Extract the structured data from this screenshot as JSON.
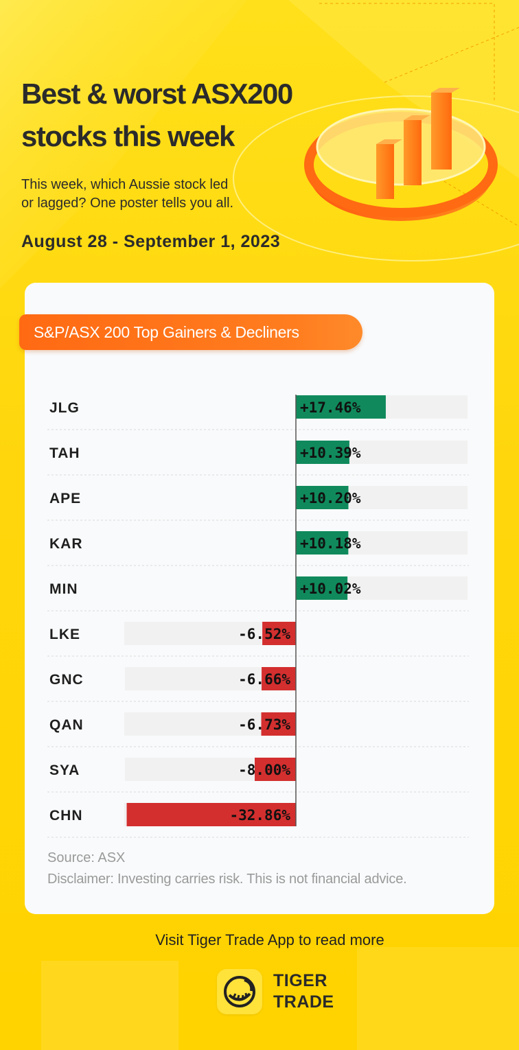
{
  "header": {
    "title_line1": "Best & worst ASX200",
    "title_line2": "stocks this week",
    "subtitle_line1": "This week, which Aussie stock led",
    "subtitle_line2": "or lagged? One poster tells you all.",
    "date_range": "August 28 - September 1, 2023"
  },
  "card": {
    "section_label": "S&P/ASX 200 Top Gainers & Decliners",
    "source": "Source: ASX",
    "disclaimer": "Disclaimer: Investing carries risk. This is not financial advice."
  },
  "footer": {
    "cta": "Visit Tiger Trade App to read more",
    "brand_line1": "TIGER",
    "brand_line2": "TRADE"
  },
  "icons": [
    "bar-chart-3d-icon",
    "tiger-trade-logo-icon"
  ],
  "colors": {
    "background": "#ffd60c",
    "accent_orange": "#ff6a13",
    "gain": "#108a5c",
    "loss": "#d32f2f",
    "track": "#f1f1f1",
    "text_dark": "#1f1f1f",
    "text_muted": "#9a9a9a"
  },
  "chart_data": {
    "type": "bar",
    "orientation": "horizontal",
    "title": "S&P/ASX 200 Top Gainers & Decliners",
    "categories": [
      "JLG",
      "TAH",
      "APE",
      "KAR",
      "MIN",
      "LKE",
      "GNC",
      "QAN",
      "SYA",
      "CHN"
    ],
    "values": [
      17.46,
      10.39,
      10.2,
      10.18,
      10.02,
      -6.52,
      -6.66,
      -6.73,
      -8.0,
      -32.86
    ],
    "labels": [
      "+17.46%",
      "+10.39%",
      "+10.20%",
      "+10.18%",
      "+10.02%",
      "-6.52%",
      "-6.66%",
      "-6.73%",
      "-8.00%",
      "-32.86%"
    ],
    "unit": "%",
    "grid": false,
    "source": "Source: ASX"
  }
}
